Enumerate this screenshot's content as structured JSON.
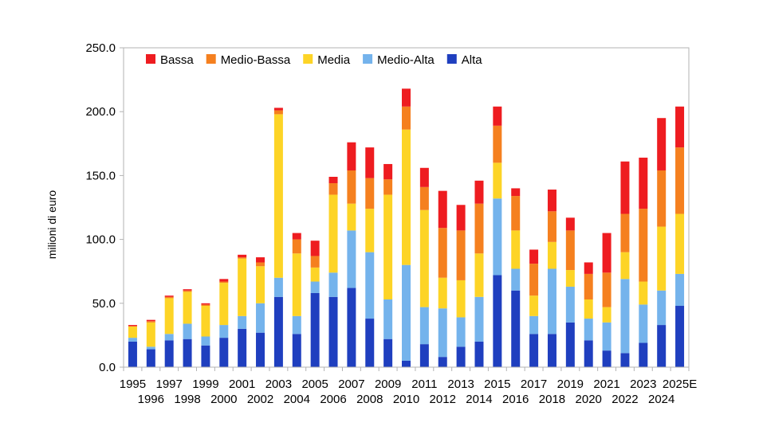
{
  "chart_data": {
    "type": "bar",
    "stacked": true,
    "title": "",
    "xlabel": "",
    "ylabel": "milioni di euro",
    "ylim": [
      0,
      250
    ],
    "yticks": [
      "0.0",
      "50.0",
      "100.0",
      "150.0",
      "200.0",
      "250.0"
    ],
    "ytick_values": [
      0,
      50,
      100,
      150,
      200,
      250
    ],
    "grid": false,
    "legend_position": "top-left",
    "categories": [
      "1995",
      "1996",
      "1997",
      "1998",
      "1999",
      "2000",
      "2001",
      "2002",
      "2003",
      "2004",
      "2005",
      "2006",
      "2007",
      "2008",
      "2009",
      "2010",
      "2011",
      "2012",
      "2013",
      "2014",
      "2015",
      "2016",
      "2017",
      "2018",
      "2019",
      "2020",
      "2021",
      "2022",
      "2023",
      "2024",
      "2025E"
    ],
    "series": [
      {
        "name": "Alta",
        "color": "#1f3fbf",
        "values": [
          20,
          14,
          21,
          22,
          17,
          23,
          30,
          27,
          55,
          26,
          58,
          55,
          62,
          38,
          22,
          5,
          18,
          8,
          16,
          20,
          72,
          60,
          26,
          26,
          35,
          21,
          13,
          11,
          19,
          33,
          48
        ]
      },
      {
        "name": "Medio-Alta",
        "color": "#74b3ec",
        "values": [
          3,
          2,
          5,
          12,
          7,
          10,
          10,
          23,
          15,
          14,
          9,
          19,
          45,
          52,
          31,
          75,
          29,
          38,
          23,
          35,
          60,
          17,
          14,
          51,
          28,
          17,
          22,
          58,
          30,
          27,
          25
        ]
      },
      {
        "name": "Media",
        "color": "#fdd426",
        "values": [
          9,
          19,
          28,
          25,
          24,
          33,
          45,
          29,
          128,
          49,
          11,
          61,
          21,
          34,
          82,
          106,
          76,
          24,
          29,
          34,
          28,
          30,
          16,
          21,
          13,
          15,
          12,
          21,
          18,
          50,
          47
        ]
      },
      {
        "name": "Medio-Bassa",
        "color": "#f5801f",
        "values": [
          0,
          1,
          1,
          1,
          1,
          1,
          1,
          3,
          3,
          11,
          9,
          9,
          26,
          24,
          12,
          18,
          18,
          39,
          39,
          39,
          29,
          27,
          25,
          24,
          31,
          20,
          27,
          30,
          57,
          44,
          52
        ]
      },
      {
        "name": "Bassa",
        "color": "#ee1c20",
        "values": [
          1,
          1,
          1,
          1,
          1,
          2,
          2,
          4,
          2,
          5,
          12,
          5,
          22,
          24,
          12,
          14,
          15,
          29,
          20,
          18,
          15,
          6,
          11,
          17,
          10,
          9,
          31,
          41,
          40,
          41,
          32
        ]
      }
    ]
  }
}
